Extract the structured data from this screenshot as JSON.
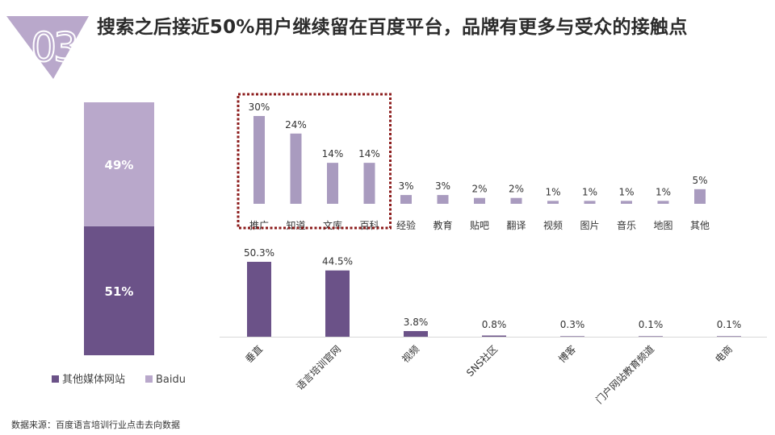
{
  "header": {
    "number": "03",
    "title": "搜索之后接近50%用户继续留在百度平台，品牌有更多与受众的接触点"
  },
  "colors": {
    "dark": "#6b5288",
    "light": "#b9a8cb",
    "mid": "#a99bbf",
    "highlight_box": "#8b1a1a"
  },
  "chart_data": [
    {
      "type": "bar",
      "stacked": true,
      "categories": [
        ""
      ],
      "series": [
        {
          "name": "其他媒体网站",
          "values": [
            51
          ],
          "labels": [
            "51%"
          ]
        },
        {
          "name": "Baidu",
          "values": [
            49
          ],
          "labels": [
            "49%"
          ]
        }
      ],
      "ylim": [
        0,
        100
      ],
      "legend": "bottom"
    },
    {
      "type": "bar",
      "categories": [
        "推广",
        "知道",
        "文库",
        "百科",
        "经验",
        "教育",
        "贴吧",
        "翻译",
        "视频",
        "图片",
        "音乐",
        "地图",
        "其他"
      ],
      "values": [
        30,
        24,
        14,
        14,
        3,
        3,
        2,
        2,
        1,
        1,
        1,
        1,
        5
      ],
      "labels": [
        "30%",
        "24%",
        "14%",
        "14%",
        "3%",
        "3%",
        "2%",
        "2%",
        "1%",
        "1%",
        "1%",
        "1%",
        "5%"
      ],
      "ylim": [
        0,
        30
      ],
      "highlight": [
        "推广",
        "知道",
        "文库",
        "百科"
      ]
    },
    {
      "type": "bar",
      "categories": [
        "垂直",
        "语言培训官网",
        "视频",
        "SNS社区",
        "博客",
        "门户网站教育频道",
        "电商"
      ],
      "values": [
        50.3,
        44.5,
        3.8,
        0.8,
        0.3,
        0.1,
        0.1
      ],
      "labels": [
        "50.3%",
        "44.5%",
        "3.8%",
        "0.8%",
        "0.3%",
        "0.1%",
        "0.1%"
      ],
      "ylim": [
        0,
        50.3
      ]
    }
  ],
  "footer": {
    "source": "数据来源：百度语言培训行业点击去向数据"
  }
}
